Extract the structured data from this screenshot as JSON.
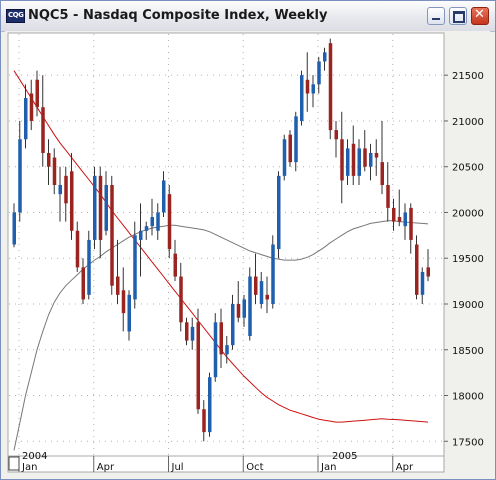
{
  "window": {
    "title": "NQC5 - Nasdaq Composite Index, Weekly",
    "icon": "chart-app-icon"
  },
  "chart_data": {
    "type": "candlestick",
    "title": "NQC5 - Nasdaq Composite Index, Weekly",
    "ylim": [
      17350,
      21950
    ],
    "y_ticks": [
      "21500",
      "21000",
      "20500",
      "20000",
      "19500",
      "19000",
      "18500",
      "18000",
      "17500"
    ],
    "x_ticks": [
      "Jan",
      "Apr",
      "Jul",
      "Oct",
      "Jan",
      "Apr"
    ],
    "x_year_labels": [
      "2004",
      "2005"
    ],
    "grid": true,
    "candles": [
      {
        "o": 19650,
        "h": 20100,
        "l": 19620,
        "c": 20000,
        "up": true
      },
      {
        "o": 20000,
        "h": 21000,
        "l": 19900,
        "c": 20800,
        "up": true
      },
      {
        "o": 20800,
        "h": 21400,
        "l": 20700,
        "c": 21250,
        "up": true
      },
      {
        "o": 21300,
        "h": 21450,
        "l": 20900,
        "c": 21000,
        "up": false
      },
      {
        "o": 21450,
        "h": 21550,
        "l": 21050,
        "c": 21150,
        "up": false
      },
      {
        "o": 21150,
        "h": 21500,
        "l": 20500,
        "c": 20650,
        "up": false
      },
      {
        "o": 20650,
        "h": 20800,
        "l": 20300,
        "c": 20500,
        "up": false
      },
      {
        "o": 20600,
        "h": 20700,
        "l": 20200,
        "c": 20300,
        "up": false
      },
      {
        "o": 20300,
        "h": 20500,
        "l": 19900,
        "c": 20200,
        "up": true
      },
      {
        "o": 20400,
        "h": 20500,
        "l": 19900,
        "c": 20100,
        "up": false
      },
      {
        "o": 20450,
        "h": 20650,
        "l": 19700,
        "c": 19800,
        "up": false
      },
      {
        "o": 19800,
        "h": 19900,
        "l": 19350,
        "c": 19400,
        "up": false
      },
      {
        "o": 19400,
        "h": 19500,
        "l": 19000,
        "c": 19050,
        "up": false
      },
      {
        "o": 19100,
        "h": 19800,
        "l": 19050,
        "c": 19700,
        "up": true
      },
      {
        "o": 19700,
        "h": 20500,
        "l": 19600,
        "c": 20400,
        "up": true
      },
      {
        "o": 20400,
        "h": 20500,
        "l": 19500,
        "c": 19700,
        "up": false
      },
      {
        "o": 19800,
        "h": 20450,
        "l": 19750,
        "c": 20300,
        "up": true
      },
      {
        "o": 20300,
        "h": 20400,
        "l": 19100,
        "c": 19200,
        "up": false
      },
      {
        "o": 19300,
        "h": 19700,
        "l": 19000,
        "c": 19100,
        "up": false
      },
      {
        "o": 19150,
        "h": 19400,
        "l": 18700,
        "c": 18900,
        "up": false
      },
      {
        "o": 18700,
        "h": 19150,
        "l": 18600,
        "c": 19100,
        "up": true
      },
      {
        "o": 19050,
        "h": 19900,
        "l": 18950,
        "c": 19750,
        "up": true
      },
      {
        "o": 19700,
        "h": 20100,
        "l": 19300,
        "c": 19800,
        "up": true
      },
      {
        "o": 19800,
        "h": 19900,
        "l": 19700,
        "c": 19850,
        "up": true
      },
      {
        "o": 19850,
        "h": 20150,
        "l": 19750,
        "c": 19950,
        "up": true
      },
      {
        "o": 19800,
        "h": 20100,
        "l": 19700,
        "c": 20000,
        "up": true
      },
      {
        "o": 20000,
        "h": 20450,
        "l": 19950,
        "c": 20350,
        "up": true
      },
      {
        "o": 20200,
        "h": 20300,
        "l": 19500,
        "c": 19600,
        "up": false
      },
      {
        "o": 19550,
        "h": 19700,
        "l": 19250,
        "c": 19300,
        "up": false
      },
      {
        "o": 19300,
        "h": 19450,
        "l": 18700,
        "c": 18800,
        "up": false
      },
      {
        "o": 18800,
        "h": 18850,
        "l": 18550,
        "c": 18600,
        "up": false
      },
      {
        "o": 18600,
        "h": 18850,
        "l": 18500,
        "c": 18750,
        "up": true
      },
      {
        "o": 18800,
        "h": 18950,
        "l": 17800,
        "c": 17850,
        "up": false
      },
      {
        "o": 17850,
        "h": 17950,
        "l": 17500,
        "c": 17600,
        "up": false
      },
      {
        "o": 17600,
        "h": 18250,
        "l": 17550,
        "c": 18200,
        "up": true
      },
      {
        "o": 18200,
        "h": 18900,
        "l": 18150,
        "c": 18800,
        "up": true
      },
      {
        "o": 18800,
        "h": 18950,
        "l": 18300,
        "c": 18450,
        "up": false
      },
      {
        "o": 18450,
        "h": 18650,
        "l": 18350,
        "c": 18550,
        "up": true
      },
      {
        "o": 18550,
        "h": 19100,
        "l": 18500,
        "c": 19000,
        "up": true
      },
      {
        "o": 19000,
        "h": 19250,
        "l": 18800,
        "c": 18850,
        "up": false
      },
      {
        "o": 18850,
        "h": 19100,
        "l": 18750,
        "c": 19050,
        "up": true
      },
      {
        "o": 18650,
        "h": 19400,
        "l": 18600,
        "c": 19300,
        "up": true
      },
      {
        "o": 19300,
        "h": 19550,
        "l": 19000,
        "c": 19100,
        "up": false
      },
      {
        "o": 19000,
        "h": 19350,
        "l": 18950,
        "c": 19250,
        "up": true
      },
      {
        "o": 19100,
        "h": 19300,
        "l": 18900,
        "c": 19050,
        "up": false
      },
      {
        "o": 19000,
        "h": 19750,
        "l": 18950,
        "c": 19650,
        "up": true
      },
      {
        "o": 19600,
        "h": 20450,
        "l": 19500,
        "c": 20400,
        "up": true
      },
      {
        "o": 20400,
        "h": 20850,
        "l": 20350,
        "c": 20800,
        "up": true
      },
      {
        "o": 20850,
        "h": 20900,
        "l": 20500,
        "c": 20550,
        "up": false
      },
      {
        "o": 20550,
        "h": 21100,
        "l": 20450,
        "c": 21050,
        "up": true
      },
      {
        "o": 21000,
        "h": 21550,
        "l": 20950,
        "c": 21500,
        "up": true
      },
      {
        "o": 21450,
        "h": 21750,
        "l": 21100,
        "c": 21300,
        "up": false
      },
      {
        "o": 21300,
        "h": 21500,
        "l": 21150,
        "c": 21400,
        "up": true
      },
      {
        "o": 21400,
        "h": 21700,
        "l": 21300,
        "c": 21650,
        "up": true
      },
      {
        "o": 21650,
        "h": 21800,
        "l": 21550,
        "c": 21750,
        "up": true
      },
      {
        "o": 21850,
        "h": 21900,
        "l": 20800,
        "c": 20900,
        "up": false
      },
      {
        "o": 20900,
        "h": 21000,
        "l": 20600,
        "c": 20800,
        "up": false
      },
      {
        "o": 20800,
        "h": 21100,
        "l": 20100,
        "c": 20350,
        "up": false
      },
      {
        "o": 20400,
        "h": 20800,
        "l": 20300,
        "c": 20700,
        "up": true
      },
      {
        "o": 20750,
        "h": 20950,
        "l": 20300,
        "c": 20400,
        "up": false
      },
      {
        "o": 20400,
        "h": 20800,
        "l": 20300,
        "c": 20700,
        "up": true
      },
      {
        "o": 20700,
        "h": 20900,
        "l": 20450,
        "c": 20500,
        "up": false
      },
      {
        "o": 20500,
        "h": 20750,
        "l": 20350,
        "c": 20650,
        "up": true
      },
      {
        "o": 20650,
        "h": 20800,
        "l": 20400,
        "c": 20600,
        "up": false
      },
      {
        "o": 20550,
        "h": 21000,
        "l": 20200,
        "c": 20300,
        "up": false
      },
      {
        "o": 20300,
        "h": 20550,
        "l": 19900,
        "c": 20050,
        "up": false
      },
      {
        "o": 20050,
        "h": 20150,
        "l": 19800,
        "c": 19900,
        "up": false
      },
      {
        "o": 19950,
        "h": 20250,
        "l": 19850,
        "c": 19900,
        "up": false
      },
      {
        "o": 19850,
        "h": 20100,
        "l": 19700,
        "c": 20000,
        "up": true
      },
      {
        "o": 20050,
        "h": 20100,
        "l": 19550,
        "c": 19700,
        "up": false
      },
      {
        "o": 19650,
        "h": 19750,
        "l": 19050,
        "c": 19100,
        "up": false
      },
      {
        "o": 19100,
        "h": 19400,
        "l": 19000,
        "c": 19350,
        "up": true
      },
      {
        "o": 19400,
        "h": 19600,
        "l": 19250,
        "c": 19300,
        "up": false
      }
    ],
    "moving_averages": [
      {
        "color": "#cc1111",
        "values": [
          21550,
          21450,
          21350,
          21250,
          21150,
          21050,
          20950,
          20850,
          20760,
          20680,
          20600,
          20520,
          20440,
          20360,
          20280,
          20200,
          20110,
          20020,
          19940,
          19860,
          19780,
          19700,
          19620,
          19540,
          19460,
          19380,
          19300,
          19220,
          19140,
          19060,
          18980,
          18900,
          18820,
          18740,
          18660,
          18580,
          18500,
          18420,
          18350,
          18280,
          18210,
          18150,
          18090,
          18030,
          17980,
          17940,
          17900,
          17870,
          17840,
          17820,
          17800,
          17780,
          17760,
          17740,
          17730,
          17720,
          17710,
          17710,
          17715,
          17720,
          17725,
          17730,
          17735,
          17740,
          17745,
          17740,
          17738,
          17735,
          17730,
          17725,
          17720,
          17715,
          17710
        ]
      },
      {
        "color": "#777777",
        "values": [
          17400,
          17700,
          18000,
          18250,
          18500,
          18700,
          18880,
          19020,
          19120,
          19200,
          19260,
          19320,
          19380,
          19430,
          19480,
          19520,
          19570,
          19610,
          19650,
          19690,
          19730,
          19760,
          19790,
          19810,
          19830,
          19840,
          19850,
          19860,
          19860,
          19850,
          19840,
          19830,
          19820,
          19810,
          19790,
          19760,
          19730,
          19700,
          19670,
          19640,
          19610,
          19580,
          19560,
          19540,
          19520,
          19500,
          19490,
          19480,
          19480,
          19480,
          19490,
          19510,
          19540,
          19580,
          19620,
          19670,
          19710,
          19750,
          19790,
          19820,
          19840,
          19860,
          19880,
          19890,
          19900,
          19910,
          19910,
          19900,
          19895,
          19890,
          19885,
          19880,
          19875
        ]
      }
    ]
  }
}
